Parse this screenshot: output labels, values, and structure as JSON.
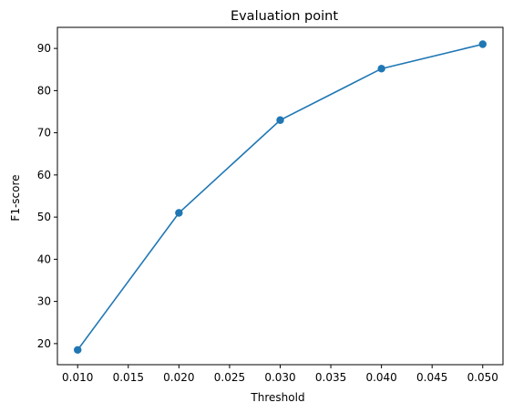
{
  "chart_data": {
    "type": "line",
    "title": "Evaluation point",
    "xlabel": "Threshold",
    "ylabel": "F1-score",
    "x": [
      0.01,
      0.02,
      0.03,
      0.04,
      0.05
    ],
    "series": [
      {
        "values": [
          18.5,
          51.0,
          73.0,
          85.2,
          91.0
        ]
      }
    ],
    "xlim": [
      0.008,
      0.052
    ],
    "ylim": [
      15,
      95
    ],
    "xticks": [
      "0.010",
      "0.015",
      "0.020",
      "0.025",
      "0.030",
      "0.035",
      "0.040",
      "0.045",
      "0.050"
    ],
    "yticks": [
      "20",
      "30",
      "40",
      "50",
      "60",
      "70",
      "80",
      "90"
    ],
    "grid": false,
    "colors": {
      "series": "#1f77b4",
      "axes": "#000000"
    }
  }
}
